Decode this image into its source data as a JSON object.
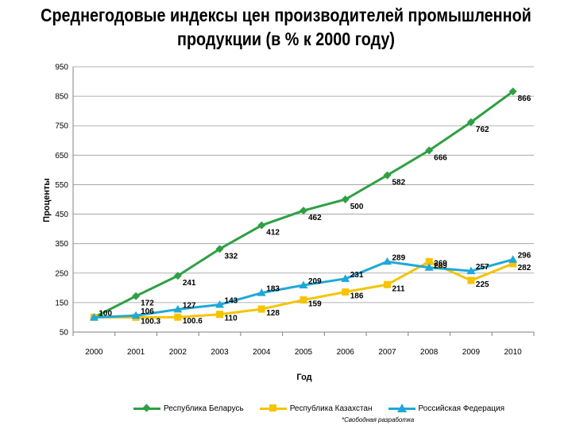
{
  "chart_data": {
    "type": "line",
    "title": "Среднегодовые индексы цен производителей промышленной продукции (в % к 2000 году)",
    "xlabel": "Год",
    "ylabel": "Проценты",
    "x": [
      "2000",
      "2001",
      "2002",
      "2003",
      "2004",
      "2005",
      "2006",
      "2007",
      "2008",
      "2009",
      "2010"
    ],
    "ylim": [
      50,
      950
    ],
    "yticks": [
      50,
      150,
      250,
      350,
      450,
      550,
      650,
      750,
      850,
      950
    ],
    "grid": true,
    "legend_position": "bottom",
    "series": [
      {
        "name": "Республика Беларусь",
        "color": "#2EA043",
        "marker": "diamond",
        "values": [
          100,
          172,
          241,
          332,
          412,
          462,
          500,
          582,
          666,
          762,
          866
        ],
        "labels": [
          "",
          "172",
          "241",
          "332",
          "412",
          "462",
          "500",
          "582",
          "666",
          "762",
          "866"
        ]
      },
      {
        "name": "Республика Казахстан",
        "color": "#F5C400",
        "marker": "square",
        "values": [
          100,
          100.3,
          100.6,
          110,
          128,
          159,
          186,
          211,
          289,
          225,
          282
        ],
        "labels": [
          "",
          "100.3",
          "100.6",
          "110",
          "128",
          "159",
          "186",
          "211",
          "289",
          "225",
          "282"
        ]
      },
      {
        "name": "Российская Федерация",
        "color": "#1FA8D8",
        "marker": "triangle",
        "values": [
          100,
          106,
          127,
          143,
          183,
          209,
          231,
          289,
          269,
          257,
          296
        ],
        "labels": [
          "100",
          "106",
          "127",
          "143",
          "183",
          "209",
          "231",
          "289",
          "269",
          "257",
          "296"
        ]
      }
    ],
    "note": "*Свободная разработка"
  }
}
